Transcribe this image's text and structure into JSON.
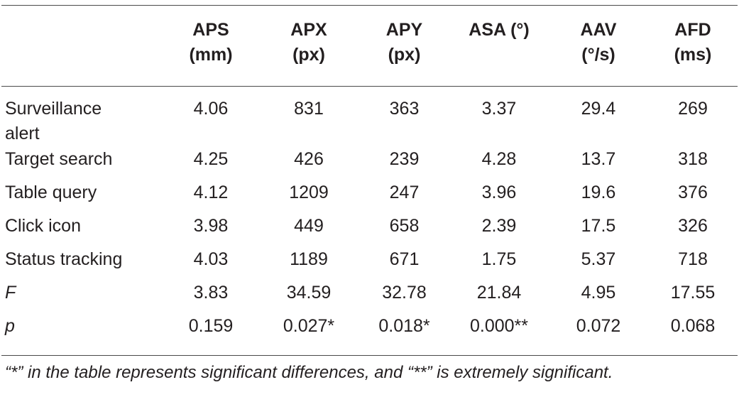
{
  "table": {
    "columns": [
      {
        "line1": "",
        "line2": ""
      },
      {
        "line1": "APS",
        "line2": "(mm)"
      },
      {
        "line1": "APX",
        "line2": "(px)"
      },
      {
        "line1": "APY",
        "line2": "(px)"
      },
      {
        "line1": "ASA (°)",
        "line2": ""
      },
      {
        "line1": "AAV",
        "line2": "(°/s)"
      },
      {
        "line1": "AFD",
        "line2": "(ms)"
      }
    ],
    "rows": [
      {
        "label_line1": "Surveillance",
        "label_line2": "alert",
        "values": [
          "4.06",
          "831",
          "363",
          "3.37",
          "29.4",
          "269"
        ]
      },
      {
        "label": "Target search",
        "values": [
          "4.25",
          "426",
          "239",
          "4.28",
          "13.7",
          "318"
        ]
      },
      {
        "label": "Table query",
        "values": [
          "4.12",
          "1209",
          "247",
          "3.96",
          "19.6",
          "376"
        ]
      },
      {
        "label": "Click icon",
        "values": [
          "3.98",
          "449",
          "658",
          "2.39",
          "17.5",
          "326"
        ]
      },
      {
        "label": "Status tracking",
        "values": [
          "4.03",
          "1189",
          "671",
          "1.75",
          "5.37",
          "718"
        ]
      },
      {
        "label": "F",
        "values": [
          "3.83",
          "34.59",
          "32.78",
          "21.84",
          "4.95",
          "17.55"
        ]
      },
      {
        "label": "p",
        "values": [
          "0.159",
          "0.027*",
          "0.018*",
          "0.000**",
          "0.072",
          "0.068"
        ]
      }
    ]
  },
  "footnote": "“*” in the table represents significant differences, and “**” is extremely significant."
}
